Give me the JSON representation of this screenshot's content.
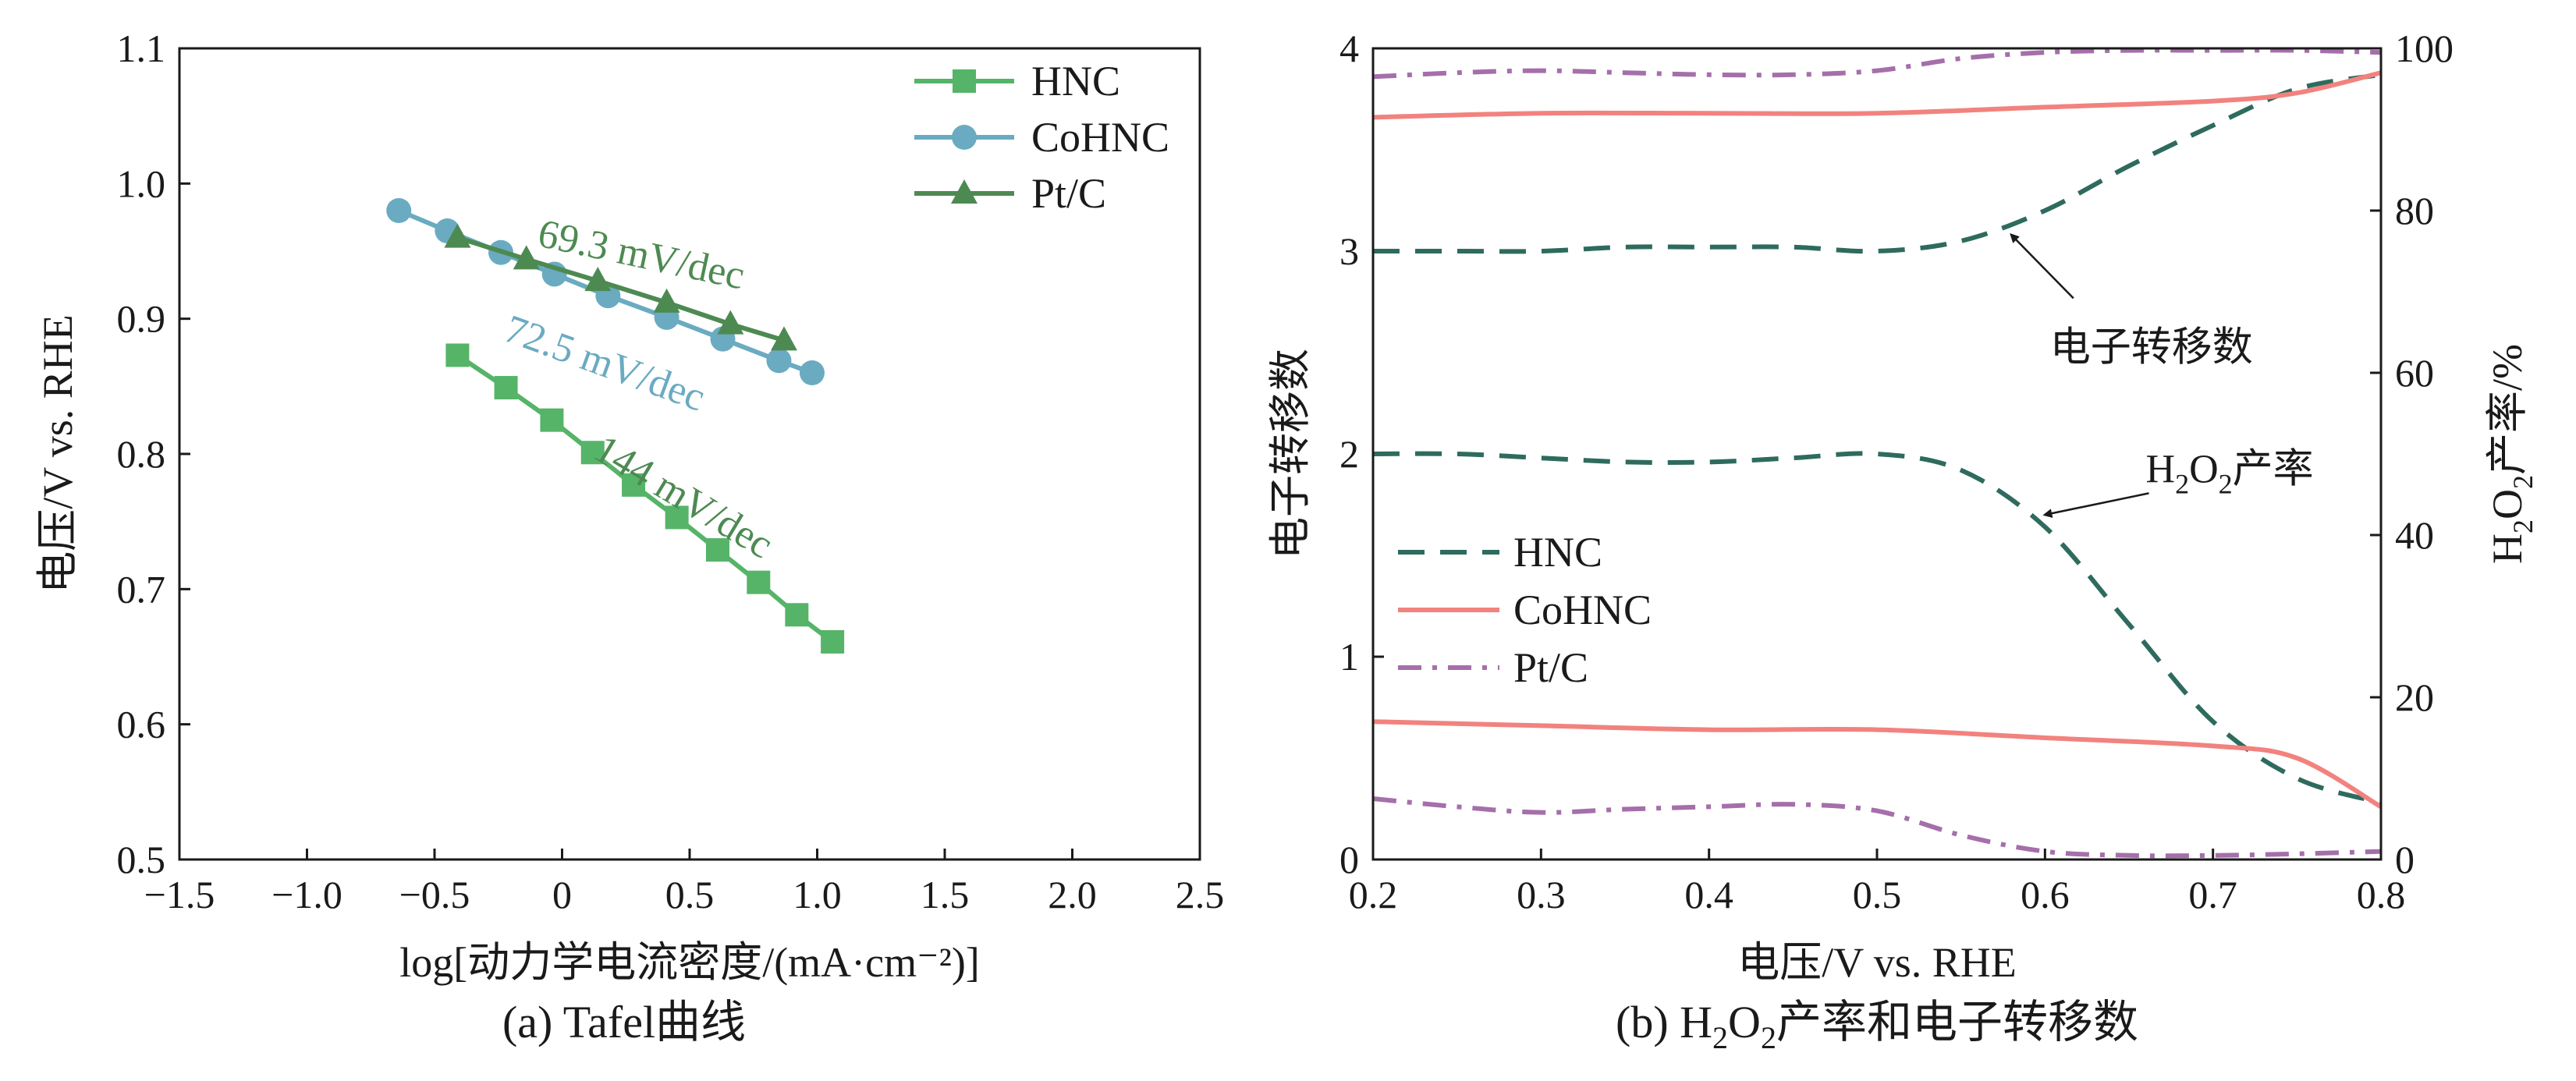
{
  "panel_a": {
    "caption": "(a) Tafel曲线"
  },
  "panel_b": {
    "caption_prefix": "(b) H",
    "caption_sub1": "2",
    "caption_mid": "O",
    "caption_sub2": "2",
    "caption_suffix": "产率和电子转移数"
  },
  "chart_data": [
    {
      "type": "line",
      "title": "",
      "xlabel": "log[动力学电流密度/(mA·cm⁻²)]",
      "ylabel": "电压/V vs. RHE",
      "xlim": [
        -1.5,
        2.5
      ],
      "ylim": [
        0.5,
        1.1
      ],
      "xticks": [
        -1.5,
        -1.0,
        -0.5,
        0,
        0.5,
        1.0,
        1.5,
        2.0,
        2.5
      ],
      "xtick_labels": [
        "−1.5",
        "−1.0",
        "−0.5",
        "0",
        "0.5",
        "1.0",
        "1.5",
        "2.0",
        "2.5"
      ],
      "yticks": [
        0.5,
        0.6,
        0.7,
        0.8,
        0.9,
        1.0,
        1.1
      ],
      "ytick_labels": [
        "0.5",
        "0.6",
        "0.7",
        "0.8",
        "0.9",
        "1.0",
        "1.1"
      ],
      "legend_position": "top-right",
      "series": [
        {
          "name": "HNC",
          "color": "#55b468",
          "marker": "square",
          "x": [
            -0.41,
            -0.22,
            -0.04,
            0.12,
            0.28,
            0.45,
            0.61,
            0.77,
            0.92,
            1.06
          ],
          "y": [
            0.873,
            0.849,
            0.825,
            0.801,
            0.777,
            0.753,
            0.729,
            0.705,
            0.681,
            0.661
          ]
        },
        {
          "name": "CoHNC",
          "color": "#6aabc1",
          "marker": "circle",
          "x": [
            -0.64,
            -0.45,
            -0.24,
            -0.03,
            0.18,
            0.41,
            0.63,
            0.85,
            0.98
          ],
          "y": [
            0.98,
            0.965,
            0.949,
            0.933,
            0.917,
            0.901,
            0.885,
            0.869,
            0.86
          ]
        },
        {
          "name": "Pt/C",
          "color": "#4d8a52",
          "marker": "triangle",
          "x": [
            -0.41,
            -0.14,
            0.14,
            0.41,
            0.66,
            0.87
          ],
          "y": [
            0.96,
            0.944,
            0.928,
            0.912,
            0.896,
            0.884
          ]
        }
      ],
      "annotations": [
        {
          "text": "69.3 mV/dec",
          "color": "#4d8a52",
          "x": 0.3,
          "y": 0.938,
          "angle": 12
        },
        {
          "text": "72.5 mV/dec",
          "color": "#6aabc1",
          "x": 0.15,
          "y": 0.858,
          "angle": 20
        },
        {
          "text": "144 mV/dec",
          "color": "#4d8a52",
          "x": 0.45,
          "y": 0.76,
          "angle": 31
        }
      ]
    },
    {
      "type": "line",
      "title": "",
      "xlabel": "电压/V vs. RHE",
      "ylabel": "电子转移数",
      "ylabel_right_main": "H",
      "ylabel_right_sub1": "2",
      "ylabel_right_mid": "O",
      "ylabel_right_sub2": "2",
      "ylabel_right_suffix": "产率/%",
      "xlim": [
        0.2,
        0.8
      ],
      "ylim": [
        0,
        4
      ],
      "ylim_right": [
        0,
        100
      ],
      "xticks": [
        0.2,
        0.3,
        0.4,
        0.5,
        0.6,
        0.7,
        0.8
      ],
      "xtick_labels": [
        "0.2",
        "0.3",
        "0.4",
        "0.5",
        "0.6",
        "0.7",
        "0.8"
      ],
      "yticks": [
        0,
        1,
        2,
        3,
        4
      ],
      "ytick_labels": [
        "0",
        "1",
        "2",
        "3",
        "4"
      ],
      "yticks_right": [
        0,
        20,
        40,
        60,
        80,
        100
      ],
      "ytick_labels_right": [
        "0",
        "20",
        "40",
        "60",
        "80",
        "100"
      ],
      "legend_position": "lower-left",
      "series": [
        {
          "name": "HNC",
          "color": "#2e6b5e",
          "dash": "dashed",
          "quantity": "electron transfer number",
          "x": [
            0.2,
            0.25,
            0.3,
            0.35,
            0.4,
            0.45,
            0.5,
            0.55,
            0.6,
            0.65,
            0.7,
            0.75,
            0.8
          ],
          "y": [
            3.0,
            3.0,
            3.0,
            3.02,
            3.02,
            3.02,
            3.0,
            3.05,
            3.2,
            3.42,
            3.62,
            3.8,
            3.87
          ]
        },
        {
          "name": "HNC",
          "color": "#2e6b5e",
          "dash": "dashed",
          "quantity": "H2O2 yield",
          "x": [
            0.2,
            0.25,
            0.3,
            0.35,
            0.4,
            0.45,
            0.5,
            0.55,
            0.6,
            0.65,
            0.7,
            0.75,
            0.8
          ],
          "y_right": [
            50.0,
            50.0,
            49.5,
            49.0,
            49.0,
            49.5,
            50.0,
            48.0,
            41.0,
            29.0,
            17.0,
            10.0,
            7.0
          ]
        },
        {
          "name": "CoHNC",
          "color": "#f2827e",
          "dash": "solid",
          "quantity": "electron transfer number",
          "x": [
            0.2,
            0.3,
            0.4,
            0.5,
            0.6,
            0.7,
            0.75,
            0.8
          ],
          "y": [
            3.66,
            3.68,
            3.68,
            3.68,
            3.71,
            3.74,
            3.78,
            3.88
          ]
        },
        {
          "name": "CoHNC",
          "color": "#f2827e",
          "dash": "solid",
          "quantity": "H2O2 yield",
          "x": [
            0.2,
            0.3,
            0.4,
            0.5,
            0.6,
            0.7,
            0.75,
            0.8
          ],
          "y_right": [
            17.0,
            16.5,
            16.0,
            16.0,
            15.0,
            14.0,
            12.5,
            6.5
          ]
        },
        {
          "name": "Pt/C",
          "color": "#a56faa",
          "dash": "dashdot",
          "quantity": "electron transfer number",
          "x": [
            0.2,
            0.25,
            0.3,
            0.35,
            0.4,
            0.45,
            0.5,
            0.55,
            0.6,
            0.65,
            0.7,
            0.75,
            0.8
          ],
          "y": [
            3.86,
            3.88,
            3.89,
            3.88,
            3.87,
            3.87,
            3.89,
            3.95,
            3.98,
            3.99,
            3.99,
            3.99,
            3.98
          ]
        },
        {
          "name": "Pt/C",
          "color": "#a56faa",
          "dash": "dashdot",
          "quantity": "H2O2 yield",
          "x": [
            0.2,
            0.25,
            0.3,
            0.35,
            0.4,
            0.45,
            0.5,
            0.55,
            0.6,
            0.65,
            0.7,
            0.75,
            0.8
          ],
          "y_right": [
            7.5,
            6.5,
            5.8,
            6.2,
            6.5,
            6.8,
            6.0,
            3.0,
            1.0,
            0.5,
            0.5,
            0.7,
            1.0
          ]
        }
      ],
      "annotations": [
        {
          "text": "电子转移数",
          "x": 0.603,
          "y": 2.46,
          "arrow_to_x": 0.58,
          "arrow_to_y": 3.08
        },
        {
          "text_main": "H",
          "text_sub1": "2",
          "text_mid": "O",
          "text_sub2": "2",
          "text_suffix": "产率",
          "x": 0.66,
          "y": 1.86,
          "arrow_to_x": 0.6,
          "arrow_to_y": 1.7
        }
      ]
    }
  ]
}
